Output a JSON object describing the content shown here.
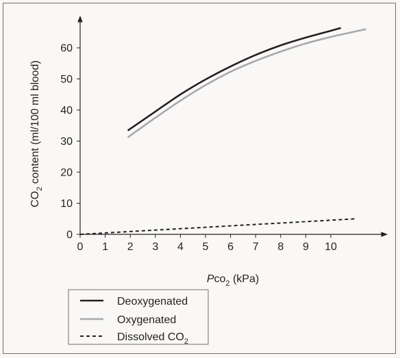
{
  "colors": {
    "background": "#f9f8f7",
    "axis": "#231f20",
    "frame": "#6e6e6e",
    "legend_border": "#6e6e6e",
    "text": "#231f20"
  },
  "chart_data": {
    "type": "line",
    "title": "",
    "xlabel": {
      "italic": "P",
      "main": "co",
      "sub": "2",
      "suffix": " (kPa)"
    },
    "ylabel": {
      "prefix": "CO",
      "sub": "2",
      "suffix": " content (ml/100 ml blood)"
    },
    "xlim": [
      0,
      11.5
    ],
    "ylim": [
      0,
      69
    ],
    "x_ticks": [
      0,
      1,
      2,
      3,
      4,
      5,
      6,
      7,
      8,
      9,
      10
    ],
    "y_ticks": [
      0,
      10,
      20,
      30,
      40,
      50,
      60
    ],
    "grid": false,
    "legend_placement": "bottom-left, below plot",
    "series": [
      {
        "name": "Deoxygenated",
        "color": "#231f20",
        "dash": "solid",
        "points": [
          [
            1.9,
            33.4
          ],
          [
            3,
            39.5
          ],
          [
            4,
            45
          ],
          [
            5,
            49.8
          ],
          [
            6,
            54
          ],
          [
            7,
            57.7
          ],
          [
            8,
            60.8
          ],
          [
            9,
            63.3
          ],
          [
            10,
            65.5
          ],
          [
            10.4,
            66.4
          ]
        ]
      },
      {
        "name": "Oxygenated",
        "color": "#a7a9ac",
        "dash": "solid",
        "points": [
          [
            1.9,
            31.2
          ],
          [
            3,
            37.5
          ],
          [
            4,
            43
          ],
          [
            5,
            48
          ],
          [
            6,
            52.3
          ],
          [
            7,
            55.8
          ],
          [
            8,
            58.8
          ],
          [
            9,
            61.4
          ],
          [
            10,
            63.5
          ],
          [
            11,
            65.3
          ],
          [
            11.4,
            66
          ]
        ]
      },
      {
        "name": "Dissolved CO",
        "name_sub": "2",
        "color": "#231f20",
        "dash": "dashed",
        "points": [
          [
            0,
            0
          ],
          [
            11,
            5
          ]
        ]
      }
    ]
  }
}
